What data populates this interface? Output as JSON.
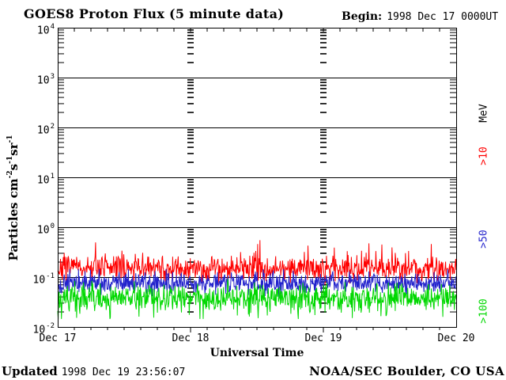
{
  "title": "GOES8 Proton Flux (5 minute data)",
  "header": {
    "begin_label": "Begin:",
    "begin_value": "1998 Dec 17 0000UT"
  },
  "footer": {
    "updated_label": "Updated",
    "updated_value": "1998 Dec 19 23:56:07",
    "credit": "NOAA/SEC Boulder, CO USA"
  },
  "right_axis": {
    "units_label": "MeV"
  },
  "chart_data": {
    "type": "line",
    "title": "GOES8 Proton Flux (5 minute data)",
    "xlabel": "Universal Time",
    "ylabel": "Particles cm-2s-1sr-1",
    "ylabel_segments": [
      {
        "t": "Particles cm",
        "sup": false
      },
      {
        "t": "-2",
        "sup": true
      },
      {
        "t": "s",
        "sup": false
      },
      {
        "t": "-1",
        "sup": true
      },
      {
        "t": "sr",
        "sup": false
      },
      {
        "t": "-1",
        "sup": true
      }
    ],
    "x_day_labels": [
      "Dec 17",
      "Dec 18",
      "Dec 19",
      "Dec 20"
    ],
    "x_span_hours": 72,
    "x_minor_tick_hours": 3,
    "y_scale": "log10",
    "y_range": [
      0.01,
      10000
    ],
    "y_tick_base": "10",
    "y_tick_exponents": [
      "4",
      "3",
      "2",
      "1",
      "0",
      "-1",
      "-2"
    ],
    "grid": {
      "horizontal_solid_decade_lines": true,
      "vertical_dash_columns_at_days": [
        "Dec 18",
        "Dec 19"
      ]
    },
    "legend_position": "right-rotated",
    "points_per_series": 864,
    "series": [
      {
        "name": ">10",
        "units": "MeV",
        "color": "#ff0000",
        "seed": 7,
        "log10_mean": -0.82,
        "log10_sigma": 0.13,
        "spike_prob": 0.04,
        "spike_amp": 0.42,
        "spike_dir": 1,
        "clamp_log10": [
          -1.15,
          -0.2
        ],
        "approx_flux_range": [
          0.08,
          0.55
        ]
      },
      {
        "name": ">50",
        "units": "MeV",
        "color": "#2222cc",
        "seed": 13,
        "log10_mean": -1.12,
        "log10_sigma": 0.1,
        "spike_prob": 0.02,
        "spike_amp": 0.2,
        "spike_dir": 1,
        "clamp_log10": [
          -1.45,
          -0.84
        ],
        "approx_flux_range": [
          0.04,
          0.14
        ]
      },
      {
        "name": ">100",
        "units": "MeV",
        "color": "#00d800",
        "seed": 29,
        "log10_mean": -1.42,
        "log10_sigma": 0.14,
        "spike_prob": 0.05,
        "spike_amp": 0.35,
        "spike_dir": -1,
        "clamp_log10": [
          -1.84,
          -1.04
        ],
        "approx_flux_range": [
          0.015,
          0.09
        ]
      }
    ]
  }
}
